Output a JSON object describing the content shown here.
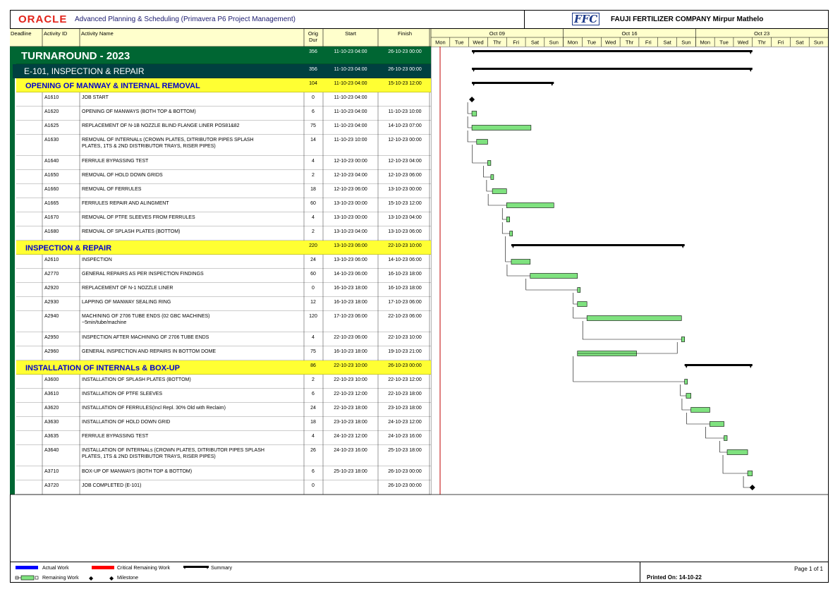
{
  "header": {
    "oracle_logo": "ORACLE",
    "app_title": "Advanced Planning & Scheduling (Primavera P6 Project Management)",
    "ffc_logo": "FFC",
    "company": "FAUJI FERTILIZER COMPANY Mirpur Mathelo"
  },
  "footer": {
    "page": "Page 1 of 1",
    "printed": "Printed On: 14-10-22"
  },
  "chart_data": {
    "type": "gantt",
    "columns": [
      "Deadline",
      "Activity ID",
      "Activity Name",
      "Orig Dur",
      "Start",
      "Finish"
    ],
    "timescale": {
      "start": "09-10-23",
      "weeks": [
        "Oct 09",
        "Oct 16",
        "Oct 23"
      ],
      "days": [
        "Mon",
        "Tue",
        "Wed",
        "Thr",
        "Fri",
        "Sat",
        "Sun",
        "Mon",
        "Tue",
        "Wed",
        "Thr",
        "Fri",
        "Sat",
        "Sun",
        "Mon",
        "Tue",
        "Wed",
        "Thr",
        "Fri",
        "Sat",
        "Sun"
      ]
    },
    "rows": [
      {
        "type": "wbs1",
        "name": "TURNAROUND - 2023",
        "dur": "356",
        "start": "11-10-23 04:00",
        "finish": "26-10-23 00:00"
      },
      {
        "type": "wbs2",
        "name": "E-101, INSPECTION & REPAIR",
        "dur": "356",
        "start": "11-10-23 04:00",
        "finish": "26-10-23 00:00"
      },
      {
        "type": "wbs3",
        "name": "OPENING OF MANWAY & INTERNAL REMOVAL",
        "dur": "104",
        "start": "11-10-23 04:00",
        "finish": "15-10-23 12:00"
      },
      {
        "type": "act",
        "id": "A1610",
        "name": "JOB START",
        "dur": "0",
        "start": "11-10-23 04:00",
        "finish": "",
        "milestone": true
      },
      {
        "type": "act",
        "id": "A1620",
        "name": "OPENING OF MANWAYS (BOTH TOP & BOTTOM)",
        "dur": "6",
        "start": "11-10-23 04:00",
        "finish": "11-10-23 10:00"
      },
      {
        "type": "act",
        "id": "A1625",
        "name": "REPLACEMENT OF N-1B NOZZLE BLIND FLANGE LINER POS81&82",
        "dur": "75",
        "start": "11-10-23 04:00",
        "finish": "14-10-23 07:00"
      },
      {
        "type": "act",
        "id": "A1630",
        "name": "REMOVAL OF INTERNALs (CROWN PLATES, DITRIBUTOR PIPES SPLASH",
        "name2": "PLATES, 1TS & 2ND DISTRIBUTOR TRAYS, RISER PIPES)",
        "dur": "14",
        "start": "11-10-23 10:00",
        "finish": "12-10-23 00:00"
      },
      {
        "type": "act",
        "id": "A1640",
        "name": "FERRULE BYPASSING TEST",
        "dur": "4",
        "start": "12-10-23 00:00",
        "finish": "12-10-23 04:00"
      },
      {
        "type": "act",
        "id": "A1650",
        "name": "REMOVAL OF HOLD DOWN GRIDS",
        "dur": "2",
        "start": "12-10-23 04:00",
        "finish": "12-10-23 06:00"
      },
      {
        "type": "act",
        "id": "A1660",
        "name": "REMOVAL OF FERRULES",
        "dur": "18",
        "start": "12-10-23 06:00",
        "finish": "13-10-23 00:00"
      },
      {
        "type": "act",
        "id": "A1665",
        "name": "FERRULES REPAIR AND ALINGMENT",
        "dur": "60",
        "start": "13-10-23 00:00",
        "finish": "15-10-23 12:00"
      },
      {
        "type": "act",
        "id": "A1670",
        "name": "REMOVAL OF PTFE SLEEVES FROM FERRULES",
        "dur": "4",
        "start": "13-10-23 00:00",
        "finish": "13-10-23 04:00"
      },
      {
        "type": "act",
        "id": "A1680",
        "name": "REMOVAL OF SPLASH PLATES (BOTTOM)",
        "dur": "2",
        "start": "13-10-23 04:00",
        "finish": "13-10-23 06:00"
      },
      {
        "type": "wbs3",
        "name": "INSPECTION & REPAIR",
        "dur": "220",
        "start": "13-10-23 06:00",
        "finish": "22-10-23 10:00"
      },
      {
        "type": "act",
        "id": "A2610",
        "name": "INSPECTION",
        "dur": "24",
        "start": "13-10-23 06:00",
        "finish": "14-10-23 06:00"
      },
      {
        "type": "act",
        "id": "A2770",
        "name": "GENERAL REPAIRS AS PER INSPECTION FINDINGS",
        "dur": "60",
        "start": "14-10-23 06:00",
        "finish": "16-10-23 18:00"
      },
      {
        "type": "act",
        "id": "A2920",
        "name": "REPLACEMENT OF N-1 NOZZLE LINER",
        "dur": "0",
        "start": "16-10-23 18:00",
        "finish": "16-10-23 18:00"
      },
      {
        "type": "act",
        "id": "A2930",
        "name": "LAPPING OF MANWAY SEALING RING",
        "dur": "12",
        "start": "16-10-23 18:00",
        "finish": "17-10-23 06:00"
      },
      {
        "type": "act",
        "id": "A2940",
        "name": "MACHINING OF 2706 TUBE ENDS (02 GBC MACHINES)",
        "name2": "~5min/tube/machine",
        "dur": "120",
        "start": "17-10-23 06:00",
        "finish": "22-10-23 06:00"
      },
      {
        "type": "act",
        "id": "A2950",
        "name": "INSPECTION AFTER MACHINING OF 2706 TUBE ENDS",
        "dur": "4",
        "start": "22-10-23 06:00",
        "finish": "22-10-23 10:00"
      },
      {
        "type": "act",
        "id": "A2960",
        "name": "GENERAL INSPECTION AND REPAIRS IN BOTTOM DOME",
        "dur": "75",
        "start": "16-10-23 18:00",
        "finish": "19-10-23 21:00"
      },
      {
        "type": "wbs3",
        "name": "INSTALLATION OF INTERNALs & BOX-UP",
        "dur": "86",
        "start": "22-10-23 10:00",
        "finish": "26-10-23 00:00"
      },
      {
        "type": "act",
        "id": "A3600",
        "name": "INSTALLATION OF SPLASH PLATES (BOTTOM)",
        "dur": "2",
        "start": "22-10-23 10:00",
        "finish": "22-10-23 12:00"
      },
      {
        "type": "act",
        "id": "A3610",
        "name": "INSTALLATION OF PTFE SLEEVES",
        "dur": "6",
        "start": "22-10-23 12:00",
        "finish": "22-10-23 18:00"
      },
      {
        "type": "act",
        "id": "A3620",
        "name": "INSTALLATION OF FERRULES(Incl Repl. 30% Old with Reclaim)",
        "dur": "24",
        "start": "22-10-23 18:00",
        "finish": "23-10-23 18:00"
      },
      {
        "type": "act",
        "id": "A3630",
        "name": "INSTALLATION OF HOLD DOWN GRID",
        "dur": "18",
        "start": "23-10-23 18:00",
        "finish": "24-10-23 12:00"
      },
      {
        "type": "act",
        "id": "A3635",
        "name": "FERRULE BYPASSING TEST",
        "dur": "4",
        "start": "24-10-23 12:00",
        "finish": "24-10-23 16:00"
      },
      {
        "type": "act",
        "id": "A3640",
        "name": "INSTALLATION OF INTERNALs (CROWN PLATES, DITRIBUTOR PIPES SPLASH",
        "name2": "PLATES, 1TS & 2ND DISTRIBUTOR TRAYS, RISER PIPES)",
        "dur": "26",
        "start": "24-10-23 16:00",
        "finish": "25-10-23 18:00"
      },
      {
        "type": "act",
        "id": "A3710",
        "name": "BOX-UP OF MANWAYS (BOTH TOP & BOTTOM)",
        "dur": "6",
        "start": "25-10-23 18:00",
        "finish": "26-10-23 00:00"
      },
      {
        "type": "act",
        "id": "A3720",
        "name": "JOB COMPLETED (E-101)",
        "dur": "0",
        "start": "",
        "finish": "26-10-23 00:00",
        "milestone": true
      }
    ],
    "legend": [
      "Actual Work",
      "Critical Remaining Work",
      "Summary",
      "Remaining Work",
      "Milestone"
    ],
    "colors": {
      "wbs1": "#006633",
      "wbs2": "#004040",
      "wbs3": "#ffff33",
      "wbs3_text": "#0000cc",
      "bar": "#7fe27f",
      "actual": "#0000ff",
      "critical": "#ff0000",
      "datadate": "#c00000"
    }
  }
}
